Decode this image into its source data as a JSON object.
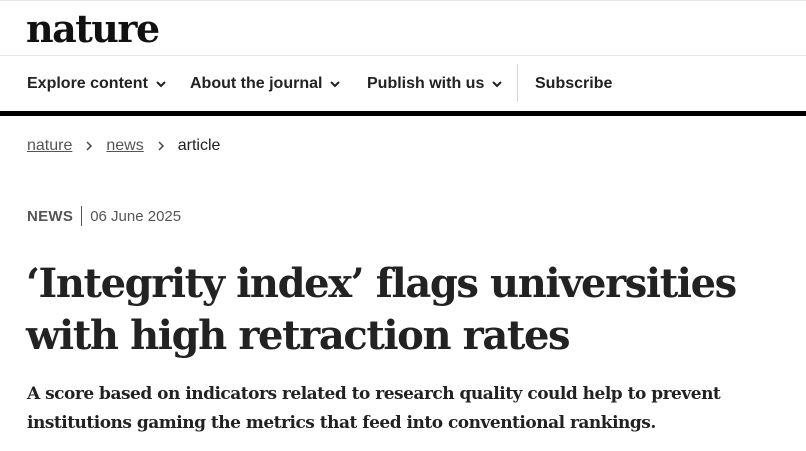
{
  "brand": {
    "logo_text": "nature"
  },
  "nav": {
    "items": [
      {
        "label": "Explore content",
        "icon": "chevron-down-icon"
      },
      {
        "label": "About the journal",
        "icon": "chevron-down-icon"
      },
      {
        "label": "Publish with us",
        "icon": "chevron-down-icon"
      }
    ],
    "subscribe_label": "Subscribe"
  },
  "breadcrumb": {
    "items": [
      {
        "label": "nature",
        "link": true
      },
      {
        "label": "news",
        "link": true
      },
      {
        "label": "article",
        "link": false
      }
    ],
    "separator_icon": "chevron-right-icon"
  },
  "article": {
    "type": "NEWS",
    "date": "06 June 2025",
    "title": "‘Integrity index’ flags universities with high retraction rates",
    "standfirst": "A score based on indicators related to research quality could help to prevent institutions gaming the metrics that feed into conventional rankings."
  },
  "colors": {
    "text": "#222222",
    "muted": "#555555",
    "rule": "#000000",
    "divider": "#e6e6e6"
  }
}
